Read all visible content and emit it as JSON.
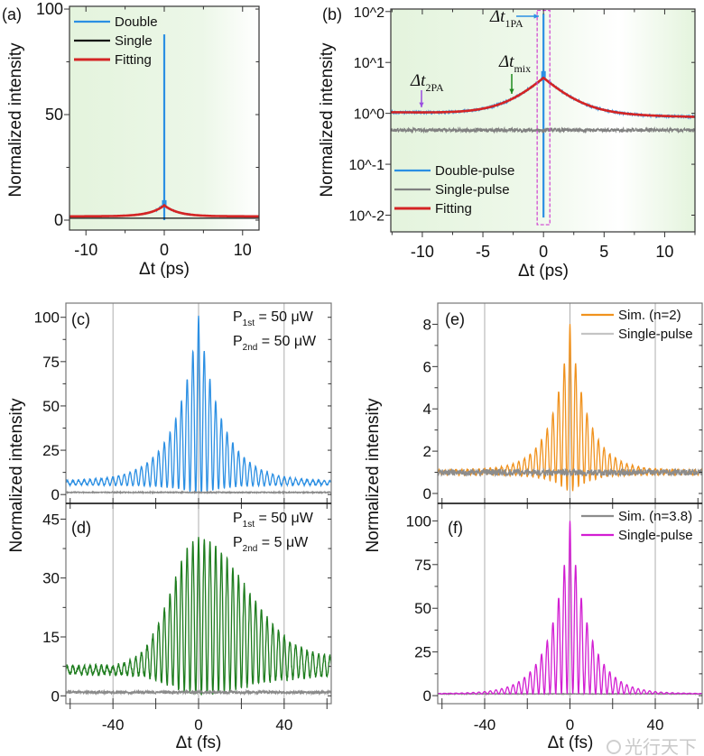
{
  "figure": {
    "watermark": "光行天下"
  },
  "chart_data": [
    {
      "panel": "(a)",
      "type": "line",
      "xlabel": "Δt (ps)",
      "ylabel": "Normalized intensity",
      "xlim": [
        -12.1,
        12.1
      ],
      "ylim": [
        -4.7,
        101.3
      ],
      "yscale": "linear",
      "xticks": [
        -10,
        0,
        10
      ],
      "xminor": [
        -5,
        5
      ],
      "yticks": [
        0,
        50,
        100
      ],
      "yminor": [
        25,
        75
      ],
      "background": "light green gradient",
      "legend": "top-left",
      "series": [
        {
          "name": "Double",
          "color": "#2b8fe3",
          "model": "cusp",
          "baseline_left": 1.8,
          "baseline_right": 1.8,
          "peak": 7,
          "decay": 1.8,
          "spike_max": 88,
          "spike_min": 0,
          "noise": 0.05
        },
        {
          "name": "Single",
          "color": "#111111",
          "model": "flat",
          "value": 0.9,
          "noise": 0
        },
        {
          "name": "Fitting",
          "color": "#d42424",
          "model": "cusp",
          "baseline_left": 1.8,
          "baseline_right": 1.8,
          "peak": 7,
          "decay": 1.8
        }
      ]
    },
    {
      "panel": "(b)",
      "type": "line",
      "xlabel": "Δt (ps)",
      "ylabel": "Normalized intensity",
      "xlim": [
        -12.6,
        12.5
      ],
      "ylim": [
        0.0047,
        112
      ],
      "yscale": "log",
      "xticks": [
        -10,
        -5,
        0,
        5,
        10
      ],
      "xminor": [
        -12.5,
        -7.5,
        -2.5,
        2.5,
        7.5,
        12.5
      ],
      "yticks": [
        100,
        10,
        1,
        0.1,
        0.01
      ],
      "ytick_labels": [
        "10^2",
        "10^1",
        "10^0",
        "10^-1",
        "10^-2"
      ],
      "background": "light green gradient",
      "legend": "bottom-left",
      "series": [
        {
          "name": "Double-pulse",
          "color": "#2b8fe3",
          "model": "cusp",
          "baseline_left": 1.05,
          "baseline_right": 0.85,
          "peak": 5,
          "decay": 1.8,
          "spike_max": 90,
          "spike_min": 0.009,
          "noise": 0.05
        },
        {
          "name": "Single-pulse",
          "color": "#808080",
          "model": "flat",
          "value": 0.47,
          "noise": 0.08
        },
        {
          "name": "Fitting",
          "color": "#d42424",
          "model": "cusp",
          "baseline_left": 1.05,
          "baseline_right": 0.85,
          "peak": 5,
          "decay": 1.8
        }
      ],
      "annotations": [
        {
          "symbol": "Δt",
          "sub": "2PA",
          "x": -10,
          "arrow": "down",
          "color": "#9b4fe0"
        },
        {
          "symbol": "Δt",
          "sub": "mix",
          "x": -2.6,
          "arrow": "down",
          "color": "#1e8a1e"
        },
        {
          "symbol": "Δt",
          "sub": "1PA",
          "x": 0,
          "arrow": "right",
          "color": "#2b8fe3"
        }
      ],
      "highlight_box": {
        "x": [
          -0.3,
          0.3
        ],
        "y": [
          0.0065,
          105
        ],
        "color": "#d040d0",
        "style": "dashed"
      }
    },
    {
      "panel": "(c)",
      "type": "line",
      "xlabel": "",
      "ylabel": "Normalized intensity",
      "xlim": [
        -62,
        62
      ],
      "ylim": [
        -5,
        108
      ],
      "yscale": "linear",
      "xticks": [
        -40,
        0,
        40
      ],
      "xminor": [
        -60,
        -20,
        20,
        60
      ],
      "grid_x": [
        -40,
        0,
        40
      ],
      "yticks": [
        0,
        25,
        50,
        75,
        100
      ],
      "yminor": [
        12.5,
        37.5,
        62.5,
        87.5
      ],
      "text": [
        {
          "main": "P",
          "sub": "1st",
          "rest": " = 50 μW"
        },
        {
          "main": "P",
          "sub": "2nd",
          "rest": " = 50 μW"
        }
      ],
      "series": [
        {
          "color": "#2b8fe3",
          "model": "fringe",
          "tail_top_left": 7.5,
          "tail_bottom_left": 5.5,
          "tail_top_right": 7.5,
          "tail_bottom_right": 5.5,
          "peak": 101,
          "min": 0,
          "decay_left": 11,
          "decay_right": 11,
          "envelope": "exponential",
          "period_fs": 2.67,
          "noise": 0.3
        },
        {
          "color": "#8a8a8a",
          "model": "flat",
          "value": 1.2,
          "noise": 0.3
        }
      ]
    },
    {
      "panel": "(d)",
      "type": "line",
      "xlabel": "Δt (fs)",
      "ylabel": "",
      "xlim": [
        -62,
        62
      ],
      "ylim": [
        -2,
        49
      ],
      "yscale": "linear",
      "xticks": [
        -40,
        0,
        40
      ],
      "xminor": [
        -60,
        -20,
        20,
        60
      ],
      "grid_x": [
        -40,
        0,
        40
      ],
      "yticks": [
        0,
        15,
        30,
        45
      ],
      "yminor": [
        7.5,
        22.5,
        37.5
      ],
      "text": [
        {
          "main": "P",
          "sub": "1st",
          "rest": " = 50 μW"
        },
        {
          "main": "P",
          "sub": "2nd",
          "rest": " = 5 μW"
        }
      ],
      "series": [
        {
          "color": "#1e7d1e",
          "model": "fringe",
          "tail_top_left": 7.5,
          "tail_bottom_left": 5.5,
          "tail_top_right": 9.5,
          "tail_bottom_right": 5,
          "peak": 40,
          "min": 0.5,
          "decay_left": 18,
          "decay_right": 31,
          "envelope": "gaussian",
          "period_fs": 2.67,
          "noise": 0.5
        },
        {
          "color": "#8a8a8a",
          "model": "flat",
          "value": 0.9,
          "noise": 0.35
        }
      ]
    },
    {
      "panel": "(e)",
      "type": "line",
      "xlabel": "",
      "ylabel": "Normalized intensity",
      "xlim": [
        -62,
        62
      ],
      "ylim": [
        -0.47,
        9
      ],
      "yscale": "linear",
      "xticks": [
        -40,
        0,
        40
      ],
      "xminor": [
        -60,
        -20,
        20,
        60
      ],
      "grid_x": [
        -40,
        0,
        40
      ],
      "yticks": [
        0,
        2,
        4,
        6,
        8
      ],
      "yminor": [
        1,
        3,
        5,
        7
      ],
      "legend": "top-right",
      "series": [
        {
          "name": "Sim. (n=2)",
          "color": "#f0921e",
          "model": "fringe",
          "tail_top_left": 1.1,
          "tail_bottom_left": 0.9,
          "tail_top_right": 1.1,
          "tail_bottom_right": 0.9,
          "peak": 8,
          "min": 0,
          "decay_left": 8.5,
          "decay_right": 8.5,
          "envelope": "exponential",
          "period_fs": 2.67,
          "noise": 0.03
        },
        {
          "name": "Single-pulse",
          "color": "#8c8c8c",
          "legend_color": "#c4c4c4",
          "model": "flat",
          "value": 1.0,
          "noise": 0.15
        }
      ]
    },
    {
      "panel": "(f)",
      "type": "line",
      "xlabel": "Δt (fs)",
      "ylabel": "",
      "xlim": [
        -62,
        62
      ],
      "ylim": [
        -4.6,
        110
      ],
      "yscale": "linear",
      "xticks": [
        -40,
        0,
        40
      ],
      "xminor": [
        -60,
        -20,
        20,
        60
      ],
      "grid_x": [
        -40,
        0,
        40
      ],
      "yticks": [
        0,
        25,
        50,
        75,
        100
      ],
      "yminor": [
        12.5,
        37.5,
        62.5,
        87.5
      ],
      "legend": "top-right",
      "series": [
        {
          "name": "Sim. (n=3.8)",
          "color": "#8c8c8c",
          "model": "flat",
          "value": 1.0,
          "noise": 0.2
        },
        {
          "name": "Single-pulse",
          "color": "#d21ed2",
          "model": "fringe",
          "tail_top_left": 1.2,
          "tail_bottom_left": 1,
          "tail_top_right": 1.2,
          "tail_bottom_right": 1,
          "peak": 100,
          "min": 1,
          "decay_left": 9,
          "decay_right": 9,
          "envelope": "exponential",
          "period_fs": 2.67,
          "noise": 0
        }
      ]
    }
  ]
}
